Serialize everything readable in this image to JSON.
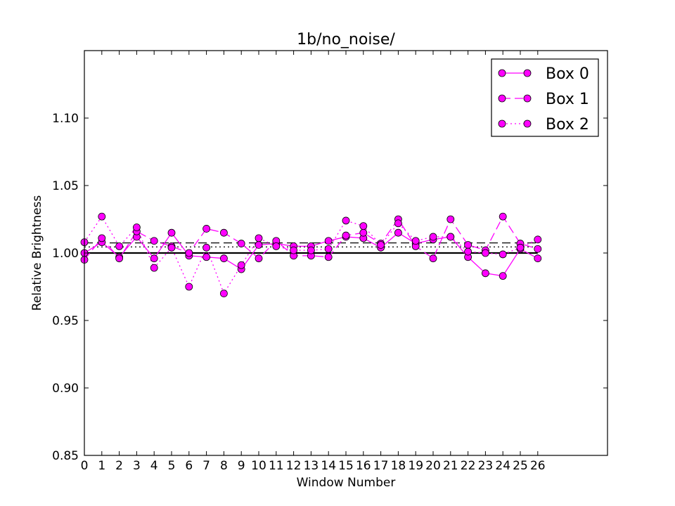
{
  "chart_data": {
    "type": "line",
    "title": "1b/no_noise/",
    "xlabel": "Window Number",
    "ylabel": "Relative Brightness",
    "xlim": [
      0,
      30
    ],
    "ylim": [
      0.85,
      1.15
    ],
    "x_ticks": [
      0,
      1,
      2,
      3,
      4,
      5,
      6,
      7,
      8,
      9,
      10,
      11,
      12,
      13,
      14,
      15,
      16,
      17,
      18,
      19,
      20,
      21,
      22,
      23,
      24,
      25,
      26
    ],
    "y_ticks": [
      0.85,
      0.9,
      0.95,
      1.0,
      1.05,
      1.1
    ],
    "y_tick_labels": [
      "0.85",
      "0.90",
      "0.95",
      "1.00",
      "1.05",
      "1.10"
    ],
    "grid": false,
    "legend_position": "top-right",
    "marker_color": "#ff00ff",
    "line_color": "#ff00ff",
    "reference_lines": [
      {
        "style": "solid",
        "y": 1.0
      },
      {
        "style": "dashed",
        "y": 1.0075
      },
      {
        "style": "dotted",
        "y": 1.0045
      }
    ],
    "x": [
      0,
      1,
      2,
      3,
      4,
      5,
      6,
      7,
      8,
      9,
      10,
      11,
      12,
      13,
      14,
      15,
      16,
      17,
      18,
      19,
      20,
      21,
      22,
      23,
      24,
      25,
      26
    ],
    "series": [
      {
        "name": "Box 0",
        "style": "solid",
        "values": [
          1.0,
          1.008,
          0.997,
          1.012,
          0.996,
          1.015,
          0.998,
          0.997,
          0.996,
          0.988,
          1.006,
          1.007,
          1.005,
          1.005,
          1.009,
          1.012,
          1.011,
          1.004,
          1.015,
          1.007,
          1.01,
          1.012,
          0.997,
          0.985,
          0.983,
          1.003,
          0.996
        ]
      },
      {
        "name": "Box 1",
        "style": "dashed",
        "values": [
          0.995,
          1.011,
          0.996,
          1.016,
          1.009,
          1.005,
          1.0,
          1.018,
          1.015,
          1.007,
          0.996,
          1.009,
          0.998,
          0.998,
          0.997,
          1.013,
          1.015,
          1.007,
          1.025,
          1.005,
          0.996,
          1.025,
          1.006,
          1.002,
          1.027,
          1.007,
          1.003
        ]
      },
      {
        "name": "Box 2",
        "style": "dotted",
        "values": [
          1.008,
          1.027,
          1.005,
          1.019,
          0.989,
          1.004,
          0.975,
          1.004,
          0.97,
          0.991,
          1.011,
          1.005,
          1.002,
          1.002,
          1.003,
          1.024,
          1.02,
          1.006,
          1.022,
          1.009,
          1.012,
          1.012,
          1.001,
          1.0,
          0.999,
          1.004,
          1.01
        ]
      }
    ]
  }
}
